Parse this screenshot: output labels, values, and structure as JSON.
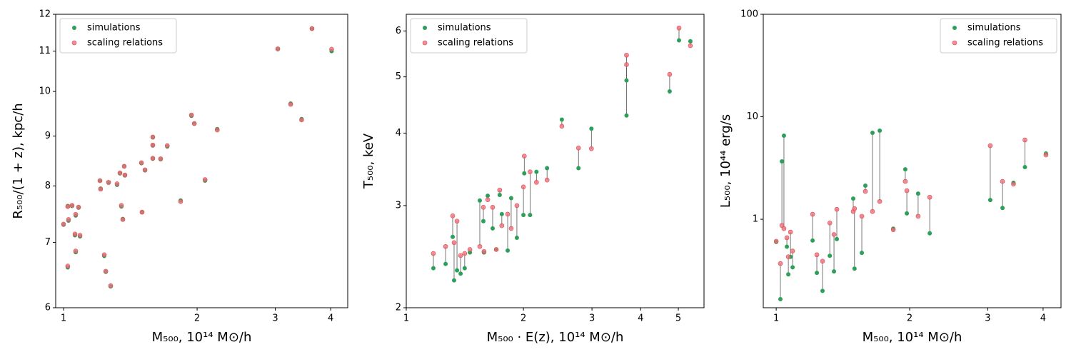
{
  "chart_data": [
    {
      "type": "scatter",
      "xscale": "log",
      "yscale": "log",
      "xlabel": "M₅₀₀, 10¹⁴ M⊙/h",
      "ylabel": "R₅₀₀/(1 + z), kpc/h",
      "xlim": [
        0.96,
        4.37
      ],
      "ylim": [
        6,
        12
      ],
      "xticks": [
        1,
        2,
        3,
        4
      ],
      "yticks": [
        6,
        7,
        8,
        9,
        10,
        11,
        12
      ],
      "legend": "upper left",
      "connect": false,
      "x": [
        1.0,
        1.026,
        1.022,
        1.045,
        1.065,
        1.081,
        1.061,
        1.089,
        1.065,
        1.022,
        1.235,
        1.245,
        1.277,
        1.208,
        1.212,
        1.263,
        1.32,
        1.34,
        1.37,
        1.375,
        1.35,
        1.36,
        1.503,
        1.498,
        1.526,
        1.589,
        1.589,
        1.589,
        1.655,
        1.713,
        1.836,
        2.084,
        1.942,
        1.971,
        2.22,
        3.04,
        3.25,
        3.44,
        3.63,
        4.02
      ],
      "series": [
        {
          "name": "simulations",
          "color": "#2ca05a",
          "values": [
            7.3,
            7.37,
            7.63,
            7.63,
            7.46,
            7.6,
            7.12,
            7.1,
            6.84,
            6.6,
            6.78,
            6.53,
            6.31,
            8.1,
            7.95,
            8.06,
            8.02,
            8.24,
            8.38,
            8.2,
            7.62,
            7.4,
            7.52,
            8.44,
            8.3,
            8.97,
            8.8,
            8.53,
            8.52,
            8.78,
            7.73,
            8.1,
            9.44,
            9.27,
            9.15,
            11.05,
            9.72,
            9.37,
            11.6,
            11.0
          ]
        },
        {
          "name": "scaling relations",
          "color": "#f07078",
          "values": [
            7.31,
            7.39,
            7.62,
            7.64,
            7.48,
            7.61,
            7.14,
            7.12,
            6.86,
            6.62,
            6.8,
            6.54,
            6.32,
            8.1,
            7.94,
            8.07,
            8.04,
            8.25,
            8.38,
            8.21,
            7.64,
            7.39,
            7.52,
            8.45,
            8.31,
            8.98,
            8.81,
            8.54,
            8.53,
            8.8,
            7.71,
            8.12,
            9.46,
            9.27,
            9.13,
            11.06,
            9.7,
            9.35,
            11.6,
            11.05
          ]
        }
      ]
    },
    {
      "type": "scatter",
      "xscale": "log",
      "yscale": "log",
      "xlabel": "M₅₀₀ · E(z), 10¹⁴ M⊙/h",
      "ylabel": "T₅₀₀, keV",
      "xlim": [
        1,
        5.82
      ],
      "ylim": [
        2,
        6.41
      ],
      "xticks": [
        1,
        2,
        3,
        4,
        5
      ],
      "yticks": [
        2,
        3,
        4,
        5,
        6
      ],
      "legend": "upper left",
      "connect": true,
      "x": [
        1.174,
        1.262,
        1.316,
        1.327,
        1.35,
        1.379,
        1.413,
        1.457,
        1.545,
        1.578,
        1.584,
        1.619,
        1.667,
        1.703,
        1.738,
        1.76,
        1.822,
        1.86,
        1.924,
        2.0,
        2.01,
        2.08,
        2.16,
        2.3,
        2.51,
        2.77,
        2.99,
        3.68,
        3.68,
        4.75,
        5.02,
        5.37
      ],
      "series": [
        {
          "name": "simulations",
          "color": "#2ca05a",
          "values": [
            2.34,
            2.38,
            2.65,
            2.23,
            2.32,
            2.29,
            2.34,
            2.49,
            3.06,
            2.82,
            2.49,
            3.12,
            2.74,
            2.52,
            3.13,
            2.9,
            2.51,
            3.09,
            2.64,
            2.89,
            3.41,
            2.89,
            3.43,
            3.48,
            4.22,
            3.48,
            4.07,
            4.93,
            4.29,
            4.72,
            5.78,
            5.76
          ]
        },
        {
          "name": "scaling relations",
          "color": "#f07078",
          "values": [
            2.48,
            2.55,
            2.88,
            2.59,
            2.82,
            2.46,
            2.48,
            2.52,
            2.55,
            2.98,
            2.5,
            3.07,
            2.98,
            2.52,
            3.19,
            2.77,
            2.9,
            2.74,
            3.0,
            3.23,
            3.65,
            3.43,
            3.29,
            3.32,
            4.11,
            3.77,
            3.76,
            5.45,
            5.25,
            5.05,
            6.07,
            5.66
          ]
        }
      ]
    },
    {
      "type": "scatter",
      "xscale": "log",
      "yscale": "log",
      "xlabel": "M₅₀₀, 10¹⁴ M⊙/h",
      "ylabel": "L₅₀₀, 10⁴⁴ erg/s",
      "xlim": [
        0.935,
        4.39
      ],
      "ylim": [
        0.137,
        100
      ],
      "xticks": [
        1,
        2,
        3,
        4
      ],
      "yticks": [
        1,
        10,
        100
      ],
      "legend": "upper right",
      "connect": true,
      "x": [
        1.0,
        1.022,
        1.03,
        1.041,
        1.057,
        1.065,
        1.077,
        1.089,
        1.208,
        1.235,
        1.272,
        1.321,
        1.35,
        1.37,
        1.492,
        1.502,
        1.56,
        1.589,
        1.649,
        1.712,
        1.837,
        1.955,
        1.971,
        2.09,
        2.22,
        3.04,
        3.24,
        3.43,
        3.64,
        4.06
      ],
      "series": [
        {
          "name": "simulations",
          "color": "#2ca05a",
          "values": [
            0.6,
            0.166,
            3.67,
            6.54,
            0.54,
            0.29,
            0.43,
            0.34,
            0.62,
            0.3,
            0.2,
            0.44,
            0.31,
            0.64,
            1.59,
            0.33,
            0.47,
            2.13,
            6.97,
            7.32,
            0.81,
            3.07,
            1.14,
            1.78,
            0.73,
            1.54,
            1.29,
            2.27,
            3.23,
            4.38
          ]
        },
        {
          "name": "scaling relations",
          "color": "#f07078",
          "values": [
            0.61,
            0.37,
            0.87,
            0.81,
            0.66,
            0.43,
            0.75,
            0.49,
            1.12,
            0.45,
            0.39,
            0.92,
            0.71,
            1.25,
            1.19,
            1.27,
            1.07,
            1.87,
            1.19,
            1.49,
            0.79,
            2.34,
            1.9,
            1.07,
            1.64,
            5.22,
            2.34,
            2.2,
            5.94,
            4.24
          ]
        }
      ]
    }
  ]
}
